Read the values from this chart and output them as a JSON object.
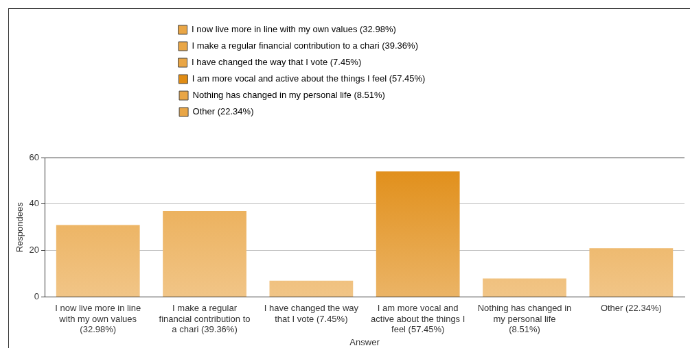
{
  "chart_data": {
    "type": "bar",
    "xlabel": "Answer",
    "ylabel": "Respondees",
    "categories": [
      "I now live more in line with my own values (32.98%)",
      "I make a regular financial contribution to a chari (39.36%)",
      "I have changed the way that I vote (7.45%)",
      "I am more vocal and active about the things I feel (57.45%)",
      "Nothing has changed in my personal life (8.51%)",
      "Other (22.34%)"
    ],
    "series": [
      {
        "name": "I now live more in line with my own values (32.98%)",
        "color": "#e9a646",
        "values": [
          31,
          null,
          null,
          null,
          null,
          null
        ]
      },
      {
        "name": "I make a regular financial contribution to a chari (39.36%)",
        "color": "#e9a646",
        "values": [
          null,
          37,
          null,
          null,
          null,
          null
        ]
      },
      {
        "name": "I have changed the way that I vote (7.45%)",
        "color": "#e9a646",
        "values": [
          null,
          null,
          7,
          null,
          null,
          null
        ]
      },
      {
        "name": "I am more vocal and active about the things I feel (57.45%)",
        "color": "#e08c14",
        "values": [
          null,
          null,
          null,
          54,
          null,
          null
        ]
      },
      {
        "name": "Nothing has changed in my personal life (8.51%)",
        "color": "#e9a646",
        "values": [
          null,
          null,
          null,
          null,
          8,
          null
        ]
      },
      {
        "name": "Other (22.34%)",
        "color": "#e9a646",
        "values": [
          null,
          null,
          null,
          null,
          null,
          21
        ]
      }
    ],
    "ylim": [
      0,
      60
    ],
    "yticks": [
      0,
      20,
      40,
      60
    ],
    "grid": "y",
    "legend": "top"
  }
}
